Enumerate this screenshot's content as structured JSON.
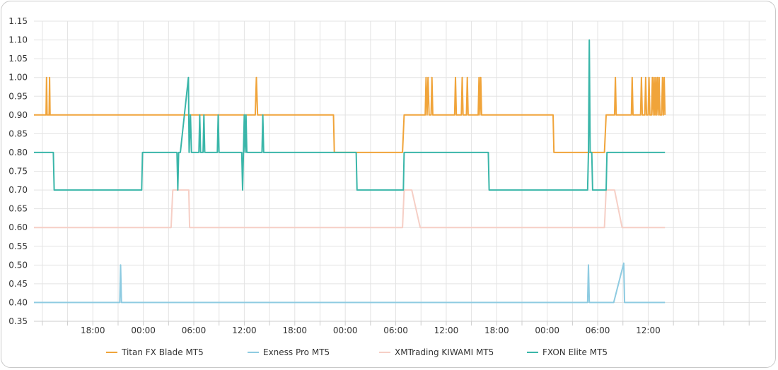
{
  "chart_data": {
    "type": "line",
    "title": "",
    "xlabel": "",
    "ylabel": "",
    "x_range": [
      0,
      43.5
    ],
    "ylim": [
      0.35,
      1.15
    ],
    "y_ticks": [
      "0.35",
      "0.40",
      "0.45",
      "0.50",
      "0.55",
      "0.60",
      "0.65",
      "0.70",
      "0.75",
      "0.80",
      "0.85",
      "0.90",
      "0.95",
      "1.00",
      "1.05",
      "1.10",
      "1.15"
    ],
    "x_ticks": [
      {
        "x": 3.5,
        "label": "18:00"
      },
      {
        "x": 6.5,
        "label": "00:00"
      },
      {
        "x": 9.5,
        "label": "06:00"
      },
      {
        "x": 12.5,
        "label": "12:00"
      },
      {
        "x": 15.5,
        "label": "18:00"
      },
      {
        "x": 18.5,
        "label": "00:00"
      },
      {
        "x": 21.5,
        "label": "06:00"
      },
      {
        "x": 24.5,
        "label": "12:00"
      },
      {
        "x": 27.5,
        "label": "18:00"
      },
      {
        "x": 30.5,
        "label": "00:00"
      },
      {
        "x": 33.5,
        "label": "06:00"
      },
      {
        "x": 36.5,
        "label": "12:00"
      }
    ],
    "grid": true,
    "legend_position": "bottom",
    "series": [
      {
        "name": "Titan FX Blade MT5",
        "color": "#f0a43a",
        "points": [
          [
            0,
            0.9
          ],
          [
            0.72,
            0.9
          ],
          [
            0.75,
            1.0
          ],
          [
            0.78,
            0.9
          ],
          [
            0.9,
            0.9
          ],
          [
            0.93,
            1.0
          ],
          [
            0.96,
            0.9
          ],
          [
            13.15,
            0.9
          ],
          [
            13.22,
            1.0
          ],
          [
            13.29,
            0.9
          ],
          [
            17.8,
            0.9
          ],
          [
            17.85,
            0.8
          ],
          [
            21.9,
            0.8
          ],
          [
            22.0,
            0.9
          ],
          [
            23.25,
            0.9
          ],
          [
            23.3,
            1.0
          ],
          [
            23.36,
            0.9
          ],
          [
            23.42,
            1.0
          ],
          [
            23.48,
            0.9
          ],
          [
            23.6,
            0.9
          ],
          [
            23.65,
            1.0
          ],
          [
            23.7,
            0.9
          ],
          [
            25.0,
            0.9
          ],
          [
            25.05,
            1.0
          ],
          [
            25.1,
            0.9
          ],
          [
            25.4,
            0.9
          ],
          [
            25.45,
            1.0
          ],
          [
            25.5,
            0.9
          ],
          [
            25.7,
            0.9
          ],
          [
            25.75,
            1.0
          ],
          [
            25.8,
            0.9
          ],
          [
            26.4,
            0.9
          ],
          [
            26.45,
            1.0
          ],
          [
            26.5,
            0.9
          ],
          [
            26.55,
            1.0
          ],
          [
            26.6,
            0.9
          ],
          [
            30.85,
            0.9
          ],
          [
            30.9,
            0.8
          ],
          [
            33.9,
            0.8
          ],
          [
            34.0,
            0.9
          ],
          [
            34.5,
            0.9
          ],
          [
            34.55,
            1.0
          ],
          [
            34.6,
            0.9
          ],
          [
            35.5,
            0.9
          ],
          [
            35.55,
            1.0
          ],
          [
            35.6,
            0.9
          ],
          [
            36.05,
            0.9
          ],
          [
            36.1,
            1.0
          ],
          [
            36.15,
            0.9
          ],
          [
            36.3,
            0.9
          ],
          [
            36.35,
            1.0
          ],
          [
            36.4,
            0.9
          ],
          [
            36.5,
            0.9
          ],
          [
            36.55,
            1.0
          ],
          [
            36.6,
            0.9
          ],
          [
            36.7,
            0.9
          ],
          [
            36.75,
            1.0
          ],
          [
            36.8,
            0.9
          ],
          [
            36.85,
            1.0
          ],
          [
            36.9,
            0.9
          ],
          [
            36.95,
            1.0
          ],
          [
            37.0,
            0.9
          ],
          [
            37.05,
            1.0
          ],
          [
            37.1,
            0.9
          ],
          [
            37.15,
            1.0
          ],
          [
            37.2,
            0.9
          ],
          [
            37.3,
            0.9
          ],
          [
            37.35,
            1.0
          ],
          [
            37.4,
            0.9
          ],
          [
            37.45,
            1.0
          ],
          [
            37.5,
            0.9
          ]
        ]
      },
      {
        "name": "Exness Pro MT5",
        "color": "#8ecbe1",
        "points": [
          [
            0,
            0.4
          ],
          [
            5.1,
            0.4
          ],
          [
            5.15,
            0.5
          ],
          [
            5.2,
            0.4
          ],
          [
            32.9,
            0.4
          ],
          [
            32.95,
            0.5
          ],
          [
            33.0,
            0.4
          ],
          [
            34.45,
            0.4
          ],
          [
            35.05,
            0.505
          ],
          [
            35.1,
            0.4
          ],
          [
            37.5,
            0.4
          ]
        ]
      },
      {
        "name": "XMTrading KIWAMI MT5",
        "color": "#f6cfc6",
        "points": [
          [
            0,
            0.6
          ],
          [
            8.15,
            0.6
          ],
          [
            8.25,
            0.7
          ],
          [
            9.2,
            0.7
          ],
          [
            9.25,
            0.6
          ],
          [
            21.9,
            0.6
          ],
          [
            22.0,
            0.7
          ],
          [
            22.45,
            0.7
          ],
          [
            22.95,
            0.6
          ],
          [
            33.9,
            0.6
          ],
          [
            34.0,
            0.7
          ],
          [
            34.5,
            0.7
          ],
          [
            34.95,
            0.6
          ],
          [
            37.5,
            0.6
          ]
        ]
      },
      {
        "name": "FXON Elite MT5",
        "color": "#3ab6a9",
        "points": [
          [
            0,
            0.8
          ],
          [
            1.15,
            0.8
          ],
          [
            1.2,
            0.7
          ],
          [
            6.4,
            0.7
          ],
          [
            6.45,
            0.8
          ],
          [
            8.5,
            0.8
          ],
          [
            8.55,
            0.7
          ],
          [
            8.6,
            0.8
          ],
          [
            8.7,
            0.8
          ],
          [
            9.18,
            1.0
          ],
          [
            9.22,
            0.8
          ],
          [
            9.3,
            0.9
          ],
          [
            9.36,
            0.8
          ],
          [
            9.8,
            0.8
          ],
          [
            9.85,
            0.9
          ],
          [
            9.9,
            0.8
          ],
          [
            10.05,
            0.8
          ],
          [
            10.1,
            0.9
          ],
          [
            10.15,
            0.8
          ],
          [
            10.9,
            0.8
          ],
          [
            10.95,
            0.9
          ],
          [
            11.0,
            0.8
          ],
          [
            12.35,
            0.8
          ],
          [
            12.4,
            0.7
          ],
          [
            12.45,
            0.8
          ],
          [
            12.5,
            0.9
          ],
          [
            12.55,
            0.8
          ],
          [
            12.6,
            0.9
          ],
          [
            12.65,
            0.8
          ],
          [
            13.55,
            0.8
          ],
          [
            13.6,
            0.9
          ],
          [
            13.65,
            0.8
          ],
          [
            19.15,
            0.8
          ],
          [
            19.2,
            0.7
          ],
          [
            21.95,
            0.7
          ],
          [
            22.0,
            0.8
          ],
          [
            27.0,
            0.8
          ],
          [
            27.05,
            0.7
          ],
          [
            32.9,
            0.7
          ],
          [
            32.95,
            0.8
          ],
          [
            33.0,
            1.1
          ],
          [
            33.05,
            0.8
          ],
          [
            33.15,
            0.8
          ],
          [
            33.2,
            0.7
          ],
          [
            34.0,
            0.7
          ],
          [
            34.05,
            0.8
          ],
          [
            37.5,
            0.8
          ]
        ]
      }
    ]
  }
}
